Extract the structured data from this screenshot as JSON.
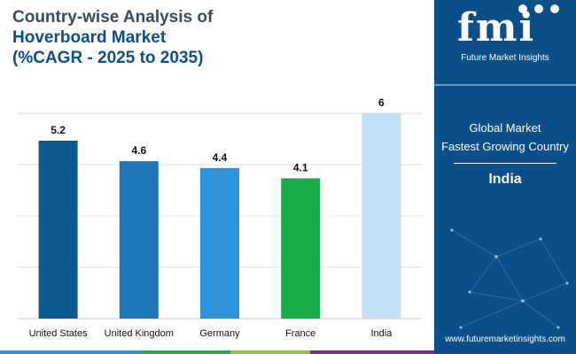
{
  "title": {
    "line1": "Country-wise Analysis of",
    "line2": "Hoverboard Market",
    "line3": "(%CAGR - 2025 to 2035)"
  },
  "chart_data": {
    "type": "bar",
    "title": "Country-wise Analysis of Hoverboard Market (%CAGR - 2025 to 2035)",
    "categories": [
      "United States",
      "United Kingdom",
      "Germany",
      "France",
      "India"
    ],
    "values": [
      5.2,
      4.6,
      4.4,
      4.1,
      6
    ],
    "value_labels": [
      "5.2",
      "4.6",
      "4.4",
      "4.1",
      "6"
    ],
    "colors": [
      "#0d5a90",
      "#1f77b8",
      "#2e93d8",
      "#1dac4c",
      "#c5dff4"
    ],
    "xlabel": "",
    "ylabel": "",
    "ylim": [
      0,
      6
    ],
    "grid": true
  },
  "panel": {
    "logo_text": "fmi",
    "logo_subtitle": "Future Market Insights",
    "label_line1": "Global Market",
    "label_line2": "Fastest Growing Country",
    "country": "India",
    "website": "www.futuremarketinsights.com"
  },
  "colors": {
    "panel_bg": "#0b4f88",
    "title_dark": "#3b4a5c",
    "title_blue": "#0d4f8b",
    "strip": [
      "#2e93d8",
      "#1dac4c",
      "#8cc63f",
      "#7b2f8a"
    ]
  }
}
